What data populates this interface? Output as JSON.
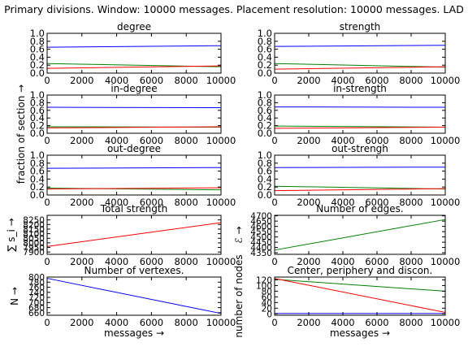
{
  "figure": {
    "suptitle": "Primary divisions. Window: 10000 messages. Placement resolution: 10000 messages. LAD",
    "shared_ylabel": "fraction of section →",
    "xlabel": "messages →",
    "colors": {
      "blue": "#0000ff",
      "green": "#008000",
      "red": "#ff0000"
    }
  },
  "chart_data": [
    {
      "type": "line",
      "id": "degree",
      "title": "degree",
      "x": [
        0,
        10000
      ],
      "xlim": [
        0,
        10000
      ],
      "xticks": [
        "0",
        "2000",
        "4000",
        "6000",
        "8000",
        "10000"
      ],
      "ylim": [
        0,
        1.0
      ],
      "yticks": [
        "0.0",
        "0.2",
        "0.4",
        "0.6",
        "0.8",
        "1.0"
      ],
      "series": [
        {
          "color": "blue",
          "values": [
            0.65,
            0.69
          ]
        },
        {
          "color": "green",
          "values": [
            0.24,
            0.16
          ]
        },
        {
          "color": "red",
          "values": [
            0.12,
            0.18
          ]
        }
      ]
    },
    {
      "type": "line",
      "id": "strength",
      "title": "strength",
      "x": [
        0,
        10000
      ],
      "xlim": [
        0,
        10000
      ],
      "xticks": [
        "0",
        "2000",
        "4000",
        "6000",
        "8000",
        "10000"
      ],
      "ylim": [
        0,
        1.0
      ],
      "yticks": [
        "0.0",
        "0.2",
        "0.4",
        "0.6",
        "0.8",
        "1.0"
      ],
      "series": [
        {
          "color": "blue",
          "values": [
            0.67,
            0.7
          ]
        },
        {
          "color": "green",
          "values": [
            0.24,
            0.15
          ]
        },
        {
          "color": "red",
          "values": [
            0.1,
            0.16
          ]
        }
      ]
    },
    {
      "type": "line",
      "id": "in-degree",
      "title": "in-degree",
      "x": [
        0,
        10000
      ],
      "xlim": [
        0,
        10000
      ],
      "xticks": [
        "0",
        "2000",
        "4000",
        "6000",
        "8000",
        "10000"
      ],
      "ylim": [
        0,
        1.0
      ],
      "yticks": [
        "0.0",
        "0.2",
        "0.4",
        "0.6",
        "0.8",
        "1.0"
      ],
      "series": [
        {
          "color": "blue",
          "values": [
            0.68,
            0.67
          ]
        },
        {
          "color": "green",
          "values": [
            0.17,
            0.16
          ]
        },
        {
          "color": "red",
          "values": [
            0.14,
            0.17
          ]
        }
      ]
    },
    {
      "type": "line",
      "id": "in-strength",
      "title": "in-strength",
      "x": [
        0,
        10000
      ],
      "xlim": [
        0,
        10000
      ],
      "xticks": [
        "0",
        "2000",
        "4000",
        "6000",
        "8000",
        "10000"
      ],
      "ylim": [
        0,
        1.0
      ],
      "yticks": [
        "0.0",
        "0.2",
        "0.4",
        "0.6",
        "0.8",
        "1.0"
      ],
      "series": [
        {
          "color": "blue",
          "values": [
            0.69,
            0.68
          ]
        },
        {
          "color": "green",
          "values": [
            0.19,
            0.16
          ]
        },
        {
          "color": "red",
          "values": [
            0.13,
            0.16
          ]
        }
      ]
    },
    {
      "type": "line",
      "id": "out-degree",
      "title": "out-degree",
      "x": [
        0,
        10000
      ],
      "xlim": [
        0,
        10000
      ],
      "xticks": [
        "0",
        "2000",
        "4000",
        "6000",
        "8000",
        "10000"
      ],
      "ylim": [
        0,
        1.0
      ],
      "yticks": [
        "0.0",
        "0.2",
        "0.4",
        "0.6",
        "0.8",
        "1.0"
      ],
      "series": [
        {
          "color": "blue",
          "values": [
            0.67,
            0.69
          ]
        },
        {
          "color": "green",
          "values": [
            0.17,
            0.13
          ]
        },
        {
          "color": "red",
          "values": [
            0.15,
            0.18
          ]
        }
      ]
    },
    {
      "type": "line",
      "id": "out-strengh",
      "title": "out-strengh",
      "x": [
        0,
        10000
      ],
      "xlim": [
        0,
        10000
      ],
      "xticks": [
        "0",
        "2000",
        "4000",
        "6000",
        "8000",
        "10000"
      ],
      "ylim": [
        0,
        1.0
      ],
      "yticks": [
        "0.0",
        "0.2",
        "0.4",
        "0.6",
        "0.8",
        "1.0"
      ],
      "series": [
        {
          "color": "blue",
          "values": [
            0.69,
            0.7
          ]
        },
        {
          "color": "green",
          "values": [
            0.22,
            0.15
          ]
        },
        {
          "color": "red",
          "values": [
            0.11,
            0.16
          ]
        }
      ]
    },
    {
      "type": "line",
      "id": "total-strength",
      "title": "Total strength",
      "ylabel": "∑ s_i →",
      "x": [
        0,
        10000
      ],
      "xlim": [
        0,
        10000
      ],
      "xticks": [
        "0",
        "2000",
        "4000",
        "6000",
        "8000",
        "10000"
      ],
      "ylim": [
        7875,
        8300
      ],
      "yticks": [
        "7900",
        "7950",
        "8000",
        "8050",
        "8100",
        "8150",
        "8200",
        "8250"
      ],
      "series": [
        {
          "color": "red",
          "values": [
            7960,
            8220
          ]
        }
      ]
    },
    {
      "type": "line",
      "id": "number-of-edges",
      "title": "Number of edges.",
      "ylabel": "ℰ →",
      "x": [
        0,
        10000
      ],
      "xlim": [
        0,
        10000
      ],
      "xticks": [
        "0",
        "2000",
        "4000",
        "6000",
        "8000",
        "10000"
      ],
      "ylim": [
        4335,
        4705
      ],
      "yticks": [
        "4350",
        "4400",
        "4450",
        "4500",
        "4550",
        "4600",
        "4650",
        "4700"
      ],
      "series": [
        {
          "color": "green",
          "values": [
            4375,
            4665
          ]
        }
      ]
    },
    {
      "type": "line",
      "id": "number-of-vertexes",
      "title": "Number of vertexes.",
      "ylabel": "N →",
      "x": [
        0,
        10000
      ],
      "xlim": [
        0,
        10000
      ],
      "xticks": [
        "0",
        "2000",
        "4000",
        "6000",
        "8000",
        "10000"
      ],
      "ylim": [
        650,
        800
      ],
      "yticks": [
        "660",
        "680",
        "700",
        "720",
        "740",
        "760",
        "780",
        "800"
      ],
      "series": [
        {
          "color": "blue",
          "values": [
            795,
            657
          ]
        }
      ]
    },
    {
      "type": "line",
      "id": "center-periphery",
      "title": "Center, periphery and discon.",
      "ylabel": "number of nodes",
      "x": [
        0,
        10000
      ],
      "xlim": [
        0,
        10000
      ],
      "xticks": [
        "0",
        "2000",
        "4000",
        "6000",
        "8000",
        "10000"
      ],
      "ylim": [
        -5,
        130
      ],
      "yticks": [
        "0",
        "20",
        "40",
        "60",
        "80",
        "100",
        "120"
      ],
      "series": [
        {
          "color": "blue",
          "values": [
            1,
            1
          ]
        },
        {
          "color": "green",
          "values": [
            122,
            80
          ]
        },
        {
          "color": "red",
          "values": [
            125,
            5
          ]
        }
      ]
    }
  ]
}
